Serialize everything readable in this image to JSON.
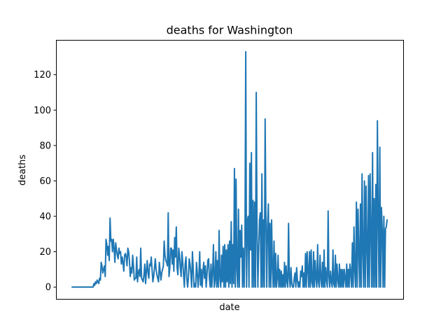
{
  "chart_data": {
    "type": "line",
    "title": "deaths for Washington",
    "xlabel": "date",
    "ylabel": "deaths",
    "ylim": [
      -6.65,
      139.65
    ],
    "yticks": [
      0,
      20,
      40,
      60,
      80,
      100,
      120
    ],
    "grid": false,
    "x_tick_labels_shown": false,
    "colors": {
      "series": "#1f77b4"
    },
    "series": [
      {
        "values": [
          0,
          0,
          0,
          0,
          0,
          0,
          0,
          0,
          0,
          0,
          0,
          0,
          0,
          0,
          0,
          0,
          0,
          0,
          0,
          0,
          0,
          0,
          0,
          0,
          0,
          0,
          0,
          2,
          1,
          3,
          2,
          4,
          3,
          2,
          5,
          4,
          14,
          12,
          8,
          10,
          12,
          6,
          27,
          24,
          18,
          23,
          15,
          39,
          26,
          27,
          20,
          27,
          22,
          14,
          25,
          21,
          18,
          16,
          22,
          19,
          20,
          13,
          17,
          14,
          9,
          18,
          19,
          17,
          12,
          22,
          20,
          15,
          6,
          11,
          8,
          18,
          12,
          4,
          5,
          5,
          17,
          3,
          8,
          10,
          6,
          22,
          5,
          4,
          3,
          7,
          13,
          2,
          9,
          15,
          8,
          5,
          13,
          12,
          17,
          10,
          3,
          6,
          11,
          16,
          10,
          7,
          5,
          3,
          14,
          9,
          4,
          8,
          10,
          12,
          26,
          18,
          15,
          14,
          12,
          42,
          6,
          11,
          22,
          22,
          13,
          21,
          9,
          28,
          17,
          34,
          11,
          7,
          22,
          18,
          11,
          6,
          20,
          14,
          7,
          0,
          13,
          17,
          5,
          0,
          5,
          16,
          13,
          8,
          0,
          20,
          10,
          0,
          2,
          0,
          14,
          8,
          0,
          7,
          20,
          1,
          10,
          0,
          9,
          14,
          5,
          12,
          0,
          7,
          15,
          16,
          5,
          0,
          13,
          0,
          8,
          24,
          0,
          4,
          20,
          0,
          15,
          0,
          32,
          5,
          0,
          18,
          3,
          23,
          0,
          24,
          0,
          21,
          3,
          24,
          0,
          26,
          2,
          37,
          0,
          24,
          2,
          67,
          0,
          61,
          10,
          0,
          44,
          0,
          32,
          17,
          35,
          0,
          22,
          0,
          23,
          133,
          0,
          37,
          40,
          0,
          70,
          21,
          76,
          0,
          49,
          0,
          48,
          0,
          110,
          30,
          0,
          22,
          38,
          42,
          0,
          64,
          0,
          38,
          0,
          95,
          37,
          0,
          35,
          47,
          0,
          36,
          0,
          38,
          11,
          0,
          26,
          0,
          19,
          0,
          5,
          18,
          0,
          10,
          0,
          9,
          0,
          7,
          0,
          14,
          0,
          12,
          3,
          0,
          36,
          5,
          0,
          11,
          2,
          0,
          0,
          5,
          8,
          0,
          11,
          4,
          0,
          3,
          0,
          9,
          6,
          12,
          0,
          8,
          0,
          19,
          0,
          20,
          10,
          0,
          20,
          0,
          21,
          3,
          0,
          20,
          0,
          15,
          5,
          0,
          24,
          3,
          0,
          18,
          5,
          0,
          14,
          0,
          21,
          0,
          11,
          4,
          0,
          43,
          6,
          0,
          9,
          3,
          0,
          21,
          2,
          0,
          18,
          0,
          13,
          4,
          0,
          13,
          0,
          10,
          0,
          10,
          0,
          10,
          5,
          0,
          13,
          0,
          10,
          0,
          13,
          8,
          0,
          25,
          0,
          34,
          9,
          0,
          48,
          0,
          44,
          20,
          0,
          47,
          0,
          64,
          20,
          0,
          60,
          0,
          57,
          22,
          0,
          63,
          0,
          64,
          30,
          0,
          76,
          0,
          50,
          0,
          58,
          0,
          94,
          38,
          0,
          79,
          0,
          45,
          32,
          0,
          40,
          0,
          33,
          34,
          38
        ]
      }
    ]
  }
}
